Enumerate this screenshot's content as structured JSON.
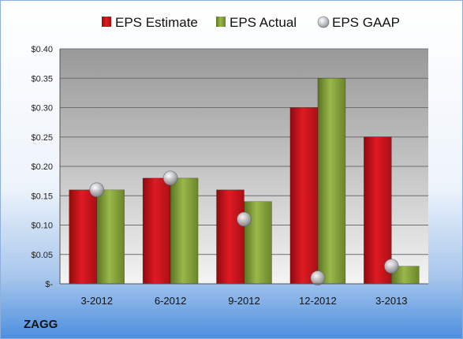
{
  "chart_data": {
    "type": "bar",
    "categories": [
      "3-2012",
      "6-2012",
      "9-2012",
      "12-2012",
      "3-2013"
    ],
    "series": [
      {
        "name": "EPS Estimate",
        "kind": "bar",
        "color": "#c8141b",
        "values": [
          0.16,
          0.18,
          0.16,
          0.3,
          0.25
        ]
      },
      {
        "name": "EPS Actual",
        "kind": "bar",
        "color": "#7f9a35",
        "values": [
          0.16,
          0.18,
          0.14,
          0.35,
          0.03
        ]
      },
      {
        "name": "EPS GAAP",
        "kind": "marker",
        "color": "#b9bcc2",
        "values": [
          0.16,
          0.18,
          0.11,
          0.01,
          0.03
        ]
      }
    ],
    "ylim": [
      0,
      0.4
    ],
    "yticks": [
      0,
      0.05,
      0.1,
      0.15,
      0.2,
      0.25,
      0.3,
      0.35,
      0.4
    ],
    "ytick_labels": [
      "$-",
      "$0.05",
      "$0.10",
      "$0.15",
      "$0.20",
      "$0.25",
      "$0.30",
      "$0.35",
      "$0.40"
    ],
    "grid": true,
    "legend_position": "top"
  },
  "footer": {
    "company": "ZAGG"
  }
}
